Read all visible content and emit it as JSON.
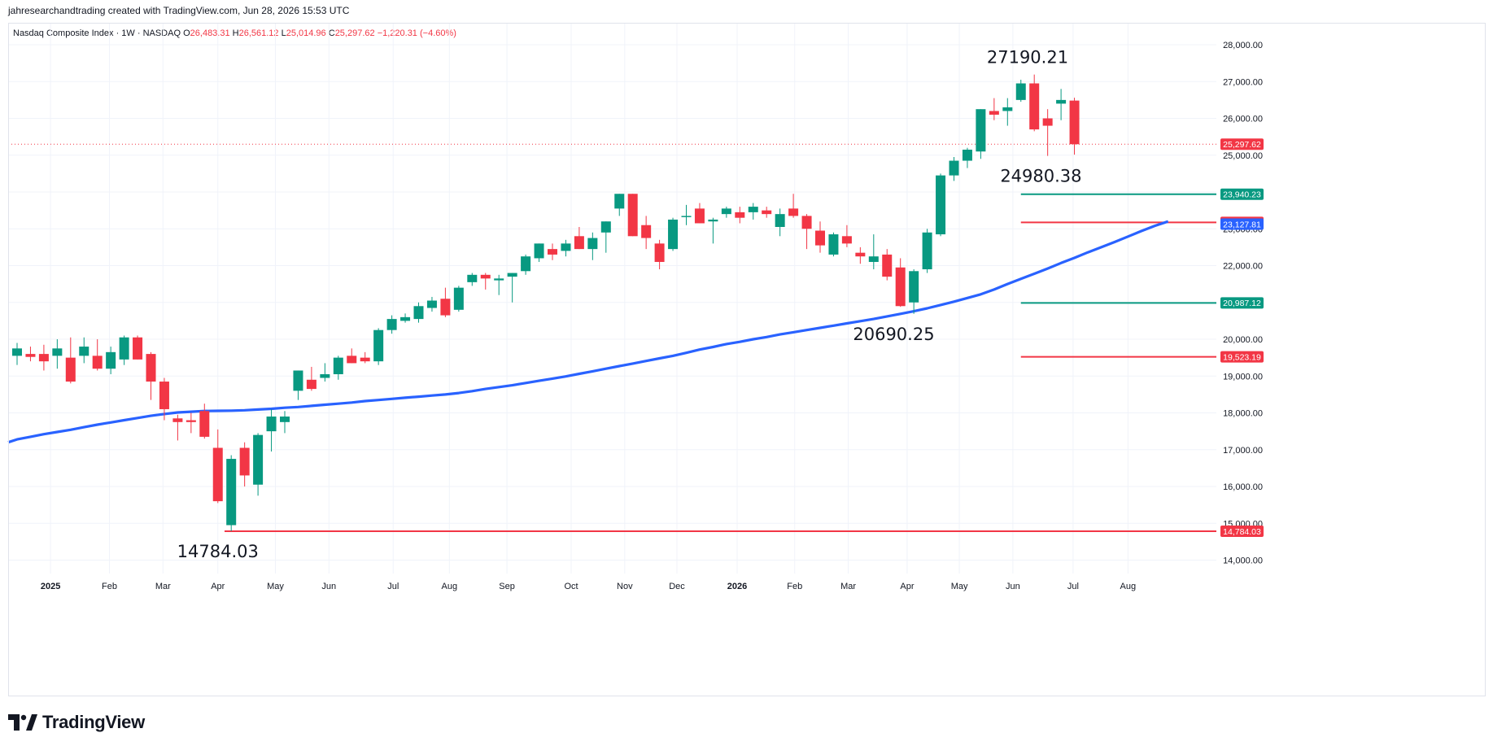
{
  "attribution": "jahresearchandtrading created with TradingView.com, Jun 28, 2026 15:53 UTC",
  "legend": {
    "symbol": "Nasdaq Composite Index · 1W · NASDAQ",
    "o_label": "O",
    "o_value": "26,483.31",
    "h_label": "H",
    "h_value": "26,561.12",
    "l_label": "L",
    "l_value": "25,014.96",
    "c_label": "C",
    "c_value": "25,297.62",
    "change": "−1,220.31 (−4.60%)"
  },
  "brand": {
    "name": "TradingView",
    "logo_icon": "tradingview-logo-icon"
  },
  "colors": {
    "up": "#089981",
    "down": "#f23645",
    "ma": "#2962ff",
    "grid": "#f0f3fa",
    "axis_text": "#131722"
  },
  "chart_data": {
    "type": "candlestick",
    "timeframe": "1W",
    "ylim": [
      13600,
      28700
    ],
    "grid": true,
    "x_tick_labels": [
      {
        "label": "2025",
        "bold": true,
        "bar": 2.5
      },
      {
        "label": "Feb",
        "bar": 6.9
      },
      {
        "label": "Mar",
        "bar": 10.9
      },
      {
        "label": "Apr",
        "bar": 15.0
      },
      {
        "label": "May",
        "bar": 19.3
      },
      {
        "label": "Jun",
        "bar": 23.3
      },
      {
        "label": "Jul",
        "bar": 28.1
      },
      {
        "label": "Aug",
        "bar": 32.3
      },
      {
        "label": "Sep",
        "bar": 36.6
      },
      {
        "label": "Oct",
        "bar": 41.4
      },
      {
        "label": "Nov",
        "bar": 45.4
      },
      {
        "label": "Dec",
        "bar": 49.3
      },
      {
        "label": "2026",
        "bold": true,
        "bar": 53.8
      },
      {
        "label": "Feb",
        "bar": 58.1
      },
      {
        "label": "Mar",
        "bar": 62.1
      },
      {
        "label": "Apr",
        "bar": 66.5
      },
      {
        "label": "May",
        "bar": 70.4
      },
      {
        "label": "Jun",
        "bar": 74.4
      },
      {
        "label": "Jul",
        "bar": 78.9
      },
      {
        "label": "Aug",
        "bar": 83.0
      }
    ],
    "y_tick_labels": [
      "14,000.00",
      "15,000.00",
      "16,000.00",
      "17,000.00",
      "18,000.00",
      "19,000.00",
      "20,000.00",
      "21,000.00",
      "22,000.00",
      "23,000.00",
      "24,000.00",
      "25,000.00",
      "26,000.00",
      "27,000.00",
      "28,000.00"
    ],
    "y_ticks": [
      14000,
      15000,
      16000,
      17000,
      18000,
      19000,
      20000,
      21000,
      22000,
      23000,
      24000,
      25000,
      26000,
      27000,
      28000
    ],
    "candles": [
      {
        "o": 19550,
        "h": 19900,
        "l": 19300,
        "c": 19750
      },
      {
        "o": 19600,
        "h": 19800,
        "l": 19400,
        "c": 19520
      },
      {
        "o": 19600,
        "h": 19850,
        "l": 19150,
        "c": 19400
      },
      {
        "o": 19550,
        "h": 20000,
        "l": 19200,
        "c": 19750
      },
      {
        "o": 19500,
        "h": 20050,
        "l": 18800,
        "c": 18850
      },
      {
        "o": 19550,
        "h": 20050,
        "l": 19350,
        "c": 19800
      },
      {
        "o": 19550,
        "h": 20000,
        "l": 19150,
        "c": 19200
      },
      {
        "o": 19200,
        "h": 19800,
        "l": 19050,
        "c": 19650
      },
      {
        "o": 19450,
        "h": 20100,
        "l": 19300,
        "c": 20050
      },
      {
        "o": 20050,
        "h": 20100,
        "l": 19450,
        "c": 19450
      },
      {
        "o": 19600,
        "h": 19650,
        "l": 18350,
        "c": 18850
      },
      {
        "o": 18850,
        "h": 18950,
        "l": 17800,
        "c": 18100
      },
      {
        "o": 17850,
        "h": 17950,
        "l": 17250,
        "c": 17750
      },
      {
        "o": 17800,
        "h": 18000,
        "l": 17450,
        "c": 17750
      },
      {
        "o": 18050,
        "h": 18250,
        "l": 17300,
        "c": 17350
      },
      {
        "o": 17050,
        "h": 17550,
        "l": 15550,
        "c": 15600
      },
      {
        "o": 14950,
        "h": 16850,
        "l": 14784,
        "c": 16750
      },
      {
        "o": 17050,
        "h": 17200,
        "l": 16000,
        "c": 16300
      },
      {
        "o": 16050,
        "h": 17450,
        "l": 15750,
        "c": 17400
      },
      {
        "o": 17500,
        "h": 18100,
        "l": 16950,
        "c": 17900
      },
      {
        "o": 17750,
        "h": 18050,
        "l": 17450,
        "c": 17900
      },
      {
        "o": 18600,
        "h": 19150,
        "l": 18350,
        "c": 19150
      },
      {
        "o": 18900,
        "h": 19250,
        "l": 18600,
        "c": 18650
      },
      {
        "o": 18950,
        "h": 19350,
        "l": 18850,
        "c": 19050
      },
      {
        "o": 19050,
        "h": 19550,
        "l": 18900,
        "c": 19500
      },
      {
        "o": 19550,
        "h": 19750,
        "l": 19350,
        "c": 19350
      },
      {
        "o": 19500,
        "h": 19650,
        "l": 19350,
        "c": 19400
      },
      {
        "o": 19400,
        "h": 20300,
        "l": 19300,
        "c": 20250
      },
      {
        "o": 20250,
        "h": 20650,
        "l": 20150,
        "c": 20550
      },
      {
        "o": 20500,
        "h": 20700,
        "l": 20450,
        "c": 20600
      },
      {
        "o": 20550,
        "h": 21000,
        "l": 20450,
        "c": 20900
      },
      {
        "o": 20850,
        "h": 21150,
        "l": 20750,
        "c": 21050
      },
      {
        "o": 21100,
        "h": 21400,
        "l": 20600,
        "c": 20650
      },
      {
        "o": 20800,
        "h": 21450,
        "l": 20750,
        "c": 21400
      },
      {
        "o": 21550,
        "h": 21800,
        "l": 21450,
        "c": 21750
      },
      {
        "o": 21750,
        "h": 21800,
        "l": 21350,
        "c": 21650
      },
      {
        "o": 21600,
        "h": 21750,
        "l": 21200,
        "c": 21650
      },
      {
        "o": 21700,
        "h": 21800,
        "l": 21000,
        "c": 21800
      },
      {
        "o": 21850,
        "h": 22300,
        "l": 21750,
        "c": 22250
      },
      {
        "o": 22200,
        "h": 22600,
        "l": 22100,
        "c": 22600
      },
      {
        "o": 22450,
        "h": 22600,
        "l": 22150,
        "c": 22300
      },
      {
        "o": 22400,
        "h": 22700,
        "l": 22250,
        "c": 22600
      },
      {
        "o": 22800,
        "h": 23050,
        "l": 22450,
        "c": 22450
      },
      {
        "o": 22450,
        "h": 22900,
        "l": 22150,
        "c": 22750
      },
      {
        "o": 22900,
        "h": 23200,
        "l": 22350,
        "c": 23200
      },
      {
        "o": 23550,
        "h": 23950,
        "l": 23350,
        "c": 23950
      },
      {
        "o": 23950,
        "h": 23950,
        "l": 22800,
        "c": 22800
      },
      {
        "o": 23100,
        "h": 23350,
        "l": 22450,
        "c": 22750
      },
      {
        "o": 22600,
        "h": 22700,
        "l": 21900,
        "c": 22100
      },
      {
        "o": 22450,
        "h": 23300,
        "l": 22400,
        "c": 23250
      },
      {
        "o": 23350,
        "h": 23650,
        "l": 23100,
        "c": 23350
      },
      {
        "o": 23550,
        "h": 23700,
        "l": 23150,
        "c": 23150
      },
      {
        "o": 23200,
        "h": 23300,
        "l": 22600,
        "c": 23250
      },
      {
        "o": 23400,
        "h": 23600,
        "l": 23300,
        "c": 23550
      },
      {
        "o": 23450,
        "h": 23600,
        "l": 23150,
        "c": 23300
      },
      {
        "o": 23450,
        "h": 23700,
        "l": 23250,
        "c": 23600
      },
      {
        "o": 23500,
        "h": 23600,
        "l": 23300,
        "c": 23400
      },
      {
        "o": 23050,
        "h": 23550,
        "l": 22800,
        "c": 23400
      },
      {
        "o": 23550,
        "h": 23950,
        "l": 23300,
        "c": 23350
      },
      {
        "o": 23350,
        "h": 23400,
        "l": 22450,
        "c": 23000
      },
      {
        "o": 22950,
        "h": 23200,
        "l": 22350,
        "c": 22550
      },
      {
        "o": 22300,
        "h": 22900,
        "l": 22250,
        "c": 22850
      },
      {
        "o": 22800,
        "h": 23100,
        "l": 22500,
        "c": 22600
      },
      {
        "o": 22350,
        "h": 22500,
        "l": 22050,
        "c": 22250
      },
      {
        "o": 22100,
        "h": 22850,
        "l": 21900,
        "c": 22250
      },
      {
        "o": 22300,
        "h": 22450,
        "l": 21600,
        "c": 21700
      },
      {
        "o": 21950,
        "h": 22200,
        "l": 20880,
        "c": 20900
      },
      {
        "o": 21000,
        "h": 21900,
        "l": 20690,
        "c": 21850
      },
      {
        "o": 21900,
        "h": 23000,
        "l": 21800,
        "c": 22900
      },
      {
        "o": 22850,
        "h": 24500,
        "l": 22800,
        "c": 24450
      },
      {
        "o": 24450,
        "h": 24950,
        "l": 24300,
        "c": 24850
      },
      {
        "o": 24850,
        "h": 25200,
        "l": 24650,
        "c": 25150
      },
      {
        "o": 25100,
        "h": 26250,
        "l": 24900,
        "c": 26250
      },
      {
        "o": 26200,
        "h": 26550,
        "l": 25950,
        "c": 26100
      },
      {
        "o": 26200,
        "h": 26550,
        "l": 25800,
        "c": 26300
      },
      {
        "o": 26500,
        "h": 27050,
        "l": 26450,
        "c": 26950
      },
      {
        "o": 26950,
        "h": 27190.21,
        "l": 25650,
        "c": 25700
      },
      {
        "o": 26000,
        "h": 26250,
        "l": 24980.38,
        "c": 25800
      },
      {
        "o": 26400,
        "h": 26800,
        "l": 25950,
        "c": 26500
      },
      {
        "o": 26483.31,
        "h": 26561.12,
        "l": 25014.96,
        "c": 25297.62
      }
    ],
    "moving_average": {
      "start_bar": -1,
      "values": [
        17200,
        17280,
        17350,
        17420,
        17480,
        17540,
        17610,
        17680,
        17740,
        17800,
        17860,
        17920,
        17970,
        18010,
        18030,
        18050,
        18055,
        18060,
        18070,
        18090,
        18110,
        18140,
        18160,
        18190,
        18220,
        18250,
        18280,
        18320,
        18350,
        18380,
        18410,
        18440,
        18470,
        18500,
        18540,
        18590,
        18650,
        18700,
        18750,
        18810,
        18870,
        18930,
        18990,
        19060,
        19130,
        19200,
        19270,
        19340,
        19410,
        19480,
        19550,
        19630,
        19720,
        19790,
        19870,
        19930,
        20000,
        20060,
        20130,
        20190,
        20250,
        20310,
        20370,
        20430,
        20490,
        20550,
        20620,
        20690,
        20760,
        20840,
        20930,
        21020,
        21120,
        21220,
        21350,
        21500,
        21640,
        21780,
        21920,
        22070,
        22210,
        22360,
        22500,
        22640,
        22790,
        22940,
        23080,
        23200
      ]
    },
    "horizontal_levels": [
      {
        "value": 14784.03,
        "label": "14,784.03",
        "color": "#f23645",
        "from_bar": 15.5
      },
      {
        "value": 19523.19,
        "label": "19,523.19",
        "color": "#f23645",
        "from_bar": 75.0
      },
      {
        "value": 20987.12,
        "label": "20,987.12",
        "color": "#089981",
        "from_bar": 75.0
      },
      {
        "value": 23173.24,
        "label": "23,173.24",
        "color": "#f23645",
        "from_bar": 75.0
      },
      {
        "value": 23940.23,
        "label": "23,940.23",
        "color": "#089981",
        "from_bar": 75.0
      }
    ],
    "ma_last": {
      "value": 23127.81,
      "label": "23,127.81",
      "color": "#2962ff"
    },
    "last_price": {
      "value": 25297.62,
      "label": "25,297.62",
      "color": "#f23645"
    },
    "annotations": [
      {
        "text": "27190.21",
        "value": 27190.21,
        "bar": 75.5,
        "position": "above"
      },
      {
        "text": "24980.38",
        "value": 24980.38,
        "bar": 76.5,
        "position": "below"
      },
      {
        "text": "20690.25",
        "value": 20690.25,
        "bar": 65.5,
        "position": "below"
      },
      {
        "text": "14784.03",
        "value": 14784.03,
        "bar": 15.0,
        "position": "below"
      }
    ]
  }
}
